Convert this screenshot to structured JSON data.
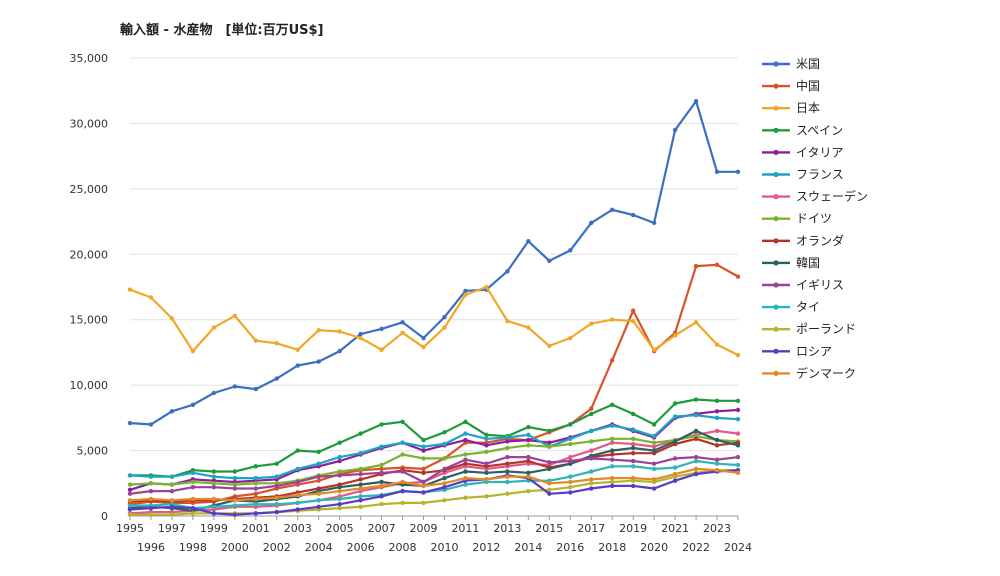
{
  "chart_data": {
    "type": "line",
    "title": "輸入額 - 水産物　[単位:百万US$]",
    "xlabel": "",
    "ylabel": "",
    "ylim": [
      0,
      35000
    ],
    "yticks": [
      "0",
      "5,000",
      "10,000",
      "15,000",
      "20,000",
      "25,000",
      "30,000",
      "35,000"
    ],
    "grid": true,
    "legend_position": "right",
    "x": [
      1995,
      1996,
      1997,
      1998,
      1999,
      2000,
      2001,
      2002,
      2003,
      2004,
      2005,
      2006,
      2007,
      2008,
      2009,
      2010,
      2011,
      2012,
      2013,
      2014,
      2015,
      2016,
      2017,
      2018,
      2019,
      2020,
      2021,
      2022,
      2023,
      2024
    ],
    "series": [
      {
        "name": "米国",
        "color": "#3a6fc4",
        "values": [
          7100,
          7000,
          8000,
          8500,
          9400,
          9900,
          9700,
          10500,
          11500,
          11800,
          12600,
          13900,
          14300,
          14800,
          13600,
          15200,
          17200,
          17300,
          18700,
          21000,
          19500,
          20300,
          22400,
          23400,
          23000,
          22400,
          29500,
          31700,
          26300,
          26300
        ]
      },
      {
        "name": "中国",
        "color": "#d9532a",
        "values": [
          900,
          1100,
          1000,
          1000,
          1100,
          1500,
          1700,
          2100,
          2400,
          2700,
          3200,
          3500,
          3600,
          3700,
          3600,
          4400,
          5600,
          5600,
          5900,
          5800,
          6400,
          7000,
          8200,
          11900,
          15700,
          12600,
          14000,
          19100,
          19200,
          18300
        ]
      },
      {
        "name": "日本",
        "color": "#f0a82a",
        "values": [
          17300,
          16700,
          15100,
          12600,
          14400,
          15300,
          13400,
          13200,
          12700,
          14200,
          14100,
          13600,
          12700,
          14000,
          12900,
          14400,
          16900,
          17500,
          14900,
          14400,
          13000,
          13600,
          14700,
          15000,
          14900,
          12700,
          13800,
          14800,
          13100,
          12300
        ]
      },
      {
        "name": "スペイン",
        "color": "#1e9a3c",
        "values": [
          3100,
          3100,
          3000,
          3500,
          3400,
          3400,
          3800,
          4000,
          5000,
          4900,
          5600,
          6300,
          7000,
          7200,
          5800,
          6400,
          7200,
          6200,
          6100,
          6800,
          6500,
          7000,
          7800,
          8500,
          7800,
          7000,
          8600,
          8900,
          8800,
          8800
        ]
      },
      {
        "name": "イタリア",
        "color": "#8e1f9c",
        "values": [
          2000,
          2500,
          2400,
          2800,
          2700,
          2600,
          2700,
          2800,
          3500,
          3800,
          4200,
          4700,
          5200,
          5600,
          5000,
          5400,
          5800,
          5400,
          5700,
          5800,
          5600,
          6000,
          6500,
          7000,
          6500,
          6000,
          7500,
          7800,
          8000,
          8100
        ]
      },
      {
        "name": "フランス",
        "color": "#1fa3c4",
        "values": [
          3100,
          3000,
          3000,
          3300,
          3000,
          2900,
          2900,
          3000,
          3600,
          4000,
          4500,
          4800,
          5300,
          5600,
          5300,
          5500,
          6300,
          5900,
          6000,
          6200,
          5300,
          5900,
          6500,
          6900,
          6600,
          6100,
          7600,
          7700,
          7500,
          7400
        ]
      },
      {
        "name": "スウェーデン",
        "color": "#e05a8a",
        "values": [
          200,
          300,
          300,
          400,
          500,
          700,
          700,
          800,
          1000,
          1200,
          1500,
          1900,
          2200,
          2500,
          2600,
          3300,
          3800,
          3600,
          3800,
          4000,
          3900,
          4500,
          5000,
          5600,
          5500,
          5300,
          5800,
          6200,
          6500,
          6300
        ]
      },
      {
        "name": "ドイツ",
        "color": "#7cb32e",
        "values": [
          2400,
          2500,
          2400,
          2600,
          2500,
          2400,
          2500,
          2500,
          2700,
          3100,
          3400,
          3600,
          3900,
          4700,
          4400,
          4400,
          4700,
          4900,
          5200,
          5400,
          5300,
          5500,
          5700,
          5900,
          5900,
          5600,
          5800,
          6100,
          5800,
          5700
        ]
      },
      {
        "name": "オランダ",
        "color": "#b5332a",
        "values": [
          1100,
          1200,
          1100,
          1200,
          1200,
          1300,
          1400,
          1500,
          1800,
          2100,
          2400,
          2800,
          3200,
          3500,
          3300,
          3500,
          4000,
          3800,
          4000,
          4200,
          3700,
          4000,
          4500,
          4700,
          4800,
          4800,
          5500,
          5900,
          5400,
          5600
        ]
      },
      {
        "name": "韓国",
        "color": "#2f6060",
        "values": [
          600,
          700,
          600,
          400,
          800,
          1200,
          1100,
          1300,
          1500,
          1900,
          2200,
          2400,
          2600,
          2400,
          2300,
          2900,
          3400,
          3300,
          3400,
          3300,
          3600,
          4000,
          4600,
          5000,
          5200,
          5000,
          5700,
          6500,
          5800,
          5400
        ]
      },
      {
        "name": "イギリス",
        "color": "#994499",
        "values": [
          1700,
          1900,
          1900,
          2200,
          2200,
          2100,
          2100,
          2300,
          2600,
          3000,
          3100,
          3200,
          3300,
          3400,
          2600,
          3600,
          4300,
          4000,
          4500,
          4500,
          4100,
          4200,
          4400,
          4300,
          4200,
          4000,
          4400,
          4500,
          4300,
          4500
        ]
      },
      {
        "name": "タイ",
        "color": "#2cb6b6",
        "values": [
          800,
          800,
          900,
          600,
          700,
          800,
          900,
          900,
          1000,
          1200,
          1300,
          1500,
          1600,
          1900,
          1800,
          2000,
          2400,
          2600,
          2600,
          2700,
          2700,
          3000,
          3400,
          3800,
          3800,
          3600,
          3700,
          4200,
          4000,
          3900
        ]
      },
      {
        "name": "ポーランド",
        "color": "#b5b52a",
        "values": [
          100,
          100,
          100,
          200,
          200,
          200,
          200,
          300,
          400,
          500,
          600,
          700,
          900,
          1000,
          1000,
          1200,
          1400,
          1500,
          1700,
          1900,
          2000,
          2200,
          2500,
          2600,
          2700,
          2600,
          3000,
          3300,
          3500,
          3500
        ]
      },
      {
        "name": "ロシア",
        "color": "#5a3cc4",
        "values": [
          500,
          600,
          700,
          600,
          200,
          100,
          200,
          300,
          500,
          700,
          900,
          1200,
          1500,
          1900,
          1800,
          2200,
          2700,
          2800,
          3100,
          2900,
          1700,
          1800,
          2100,
          2300,
          2300,
          2100,
          2700,
          3200,
          3400,
          3500
        ]
      },
      {
        "name": "デンマーク",
        "color": "#e08a2a",
        "values": [
          1200,
          1300,
          1200,
          1300,
          1300,
          1200,
          1300,
          1400,
          1600,
          1700,
          1900,
          2100,
          2300,
          2600,
          2300,
          2500,
          2900,
          2800,
          3000,
          3000,
          2500,
          2600,
          2800,
          2900,
          2900,
          2800,
          3200,
          3600,
          3500,
          3300
        ]
      }
    ]
  }
}
